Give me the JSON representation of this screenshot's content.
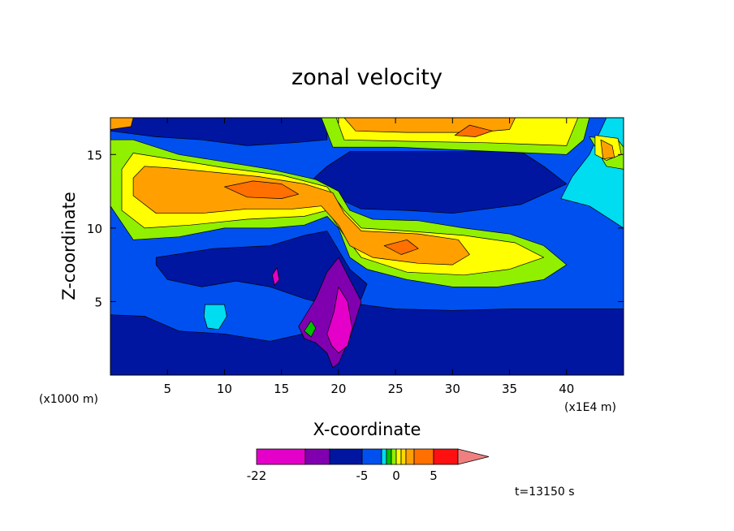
{
  "chart_data": {
    "type": "heatmap",
    "title": "zonal velocity",
    "xlabel": "X-coordinate",
    "ylabel": "Z-coordinate",
    "x_unit_left": "(x1000 m)",
    "x_unit_right": "(x1E4 m)",
    "xlim": [
      0,
      45
    ],
    "ylim": [
      0,
      17.5
    ],
    "x_ticks": [
      "5",
      "10",
      "15",
      "20",
      "25",
      "30",
      "35",
      "40"
    ],
    "y_ticks": [
      "5",
      "10",
      "15"
    ],
    "x_tick_values": [
      5,
      10,
      15,
      20,
      25,
      30,
      35,
      40
    ],
    "y_tick_values": [
      5,
      10,
      15
    ],
    "colorbar": {
      "levels": [
        -22,
        -17,
        -11,
        -5,
        -3,
        -2,
        -1,
        0,
        1,
        2,
        3,
        5,
        8,
        11
      ],
      "labels": [
        "-22",
        "-5",
        "0",
        "5"
      ],
      "label_values": [
        -22,
        -5,
        0,
        5
      ],
      "colors": [
        "#e400c8",
        "#8000b0",
        "#0016a0",
        "#0050f0",
        "#00dcf0",
        "#00c000",
        "#90f000",
        "#ffff00",
        "#ffd800",
        "#ffa000",
        "#ff7000",
        "#ff1010",
        "#f08080"
      ]
    },
    "annotation_time": "t=13150 s",
    "regions": [
      {
        "level": 2,
        "points": [
          [
            0,
            0
          ],
          [
            45,
            0
          ],
          [
            45,
            4.5
          ],
          [
            40,
            4.5
          ],
          [
            35,
            4.5
          ],
          [
            30,
            4.4
          ],
          [
            25,
            4.5
          ],
          [
            22,
            4.8
          ],
          [
            21.5,
            5.5
          ],
          [
            20,
            4
          ],
          [
            18,
            3
          ],
          [
            14,
            2.3
          ],
          [
            10,
            2.8
          ],
          [
            6,
            3
          ],
          [
            3,
            4
          ],
          [
            0,
            4.1
          ]
        ]
      },
      {
        "level": 2,
        "points": [
          [
            4,
            8
          ],
          [
            9,
            8.6
          ],
          [
            14,
            8.8
          ],
          [
            17,
            9.5
          ],
          [
            19,
            9.8
          ],
          [
            20,
            8.5
          ],
          [
            21,
            7.2
          ],
          [
            22.5,
            6.2
          ],
          [
            22,
            5.2
          ],
          [
            20,
            4.6
          ],
          [
            17,
            5.2
          ],
          [
            14,
            6
          ],
          [
            11,
            6.4
          ],
          [
            8,
            6
          ],
          [
            5,
            6.5
          ],
          [
            4,
            7.5
          ]
        ]
      },
      {
        "level": 2,
        "points": [
          [
            17,
            12.6
          ],
          [
            20,
            12
          ],
          [
            22,
            11.3
          ],
          [
            26,
            11.2
          ],
          [
            30,
            11
          ],
          [
            36,
            11.6
          ],
          [
            40,
            13
          ],
          [
            38,
            14.2
          ],
          [
            36,
            15.2
          ],
          [
            32,
            15.2
          ],
          [
            26,
            15.2
          ],
          [
            21,
            15.2
          ],
          [
            19,
            14.2
          ],
          [
            18,
            13.5
          ]
        ]
      },
      {
        "level": 2,
        "points": [
          [
            0,
            16.6
          ],
          [
            4,
            16.2
          ],
          [
            8,
            16
          ],
          [
            12,
            15.6
          ],
          [
            16,
            15.8
          ],
          [
            19,
            16
          ],
          [
            19,
            17.5
          ],
          [
            0,
            17.5
          ]
        ]
      },
      {
        "level": 1,
        "points": [
          [
            16.5,
            3.3
          ],
          [
            18,
            5.2
          ],
          [
            19,
            7
          ],
          [
            20,
            8
          ],
          [
            21,
            6.5
          ],
          [
            22,
            5
          ],
          [
            21,
            2.5
          ],
          [
            20,
            0.8
          ],
          [
            19.5,
            0.5
          ],
          [
            19,
            1.5
          ],
          [
            18,
            2.2
          ],
          [
            17,
            2.5
          ]
        ]
      },
      {
        "level": 0,
        "points": [
          [
            19,
            2.8
          ],
          [
            19.6,
            4.3
          ],
          [
            20,
            6
          ],
          [
            20.8,
            5
          ],
          [
            21.2,
            3.2
          ],
          [
            20.8,
            2
          ],
          [
            20,
            1.5
          ],
          [
            19.4,
            2
          ]
        ]
      },
      {
        "level": 0,
        "points": [
          [
            14.2,
            6.8
          ],
          [
            14.6,
            7.3
          ],
          [
            14.8,
            6.5
          ],
          [
            14.4,
            6.1
          ]
        ]
      },
      {
        "level": 4,
        "points": [
          [
            8.3,
            4.8
          ],
          [
            10,
            4.8
          ],
          [
            10.2,
            4
          ],
          [
            9.5,
            3.1
          ],
          [
            8.5,
            3.2
          ],
          [
            8.2,
            4
          ]
        ]
      },
      {
        "level": 4,
        "points": [
          [
            39.5,
            12
          ],
          [
            42,
            11.5
          ],
          [
            44,
            10.5
          ],
          [
            45,
            10
          ],
          [
            45,
            17.5
          ],
          [
            43.5,
            17.5
          ],
          [
            42,
            15
          ],
          [
            40.5,
            13.5
          ]
        ]
      },
      {
        "level": 5,
        "points": [
          [
            17,
            3
          ],
          [
            17.6,
            3.7
          ],
          [
            18,
            3.2
          ],
          [
            17.6,
            2.6
          ]
        ]
      },
      {
        "level": 6,
        "points": [
          [
            0,
            11.5
          ],
          [
            2,
            9.2
          ],
          [
            6,
            9.4
          ],
          [
            10,
            10
          ],
          [
            14,
            10
          ],
          [
            17,
            10.2
          ],
          [
            19,
            10.8
          ],
          [
            20,
            10
          ],
          [
            21,
            8
          ],
          [
            22.5,
            7.2
          ],
          [
            26,
            6.5
          ],
          [
            30,
            6
          ],
          [
            34,
            6
          ],
          [
            38,
            6.5
          ],
          [
            40,
            7.5
          ],
          [
            38,
            8.8
          ],
          [
            35,
            9.6
          ],
          [
            31,
            10
          ],
          [
            27,
            10.5
          ],
          [
            23,
            10.6
          ],
          [
            21,
            11.2
          ],
          [
            20,
            12.5
          ],
          [
            18,
            13.3
          ],
          [
            14,
            14
          ],
          [
            10,
            14.5
          ],
          [
            6,
            15
          ],
          [
            2,
            16
          ],
          [
            0,
            16
          ]
        ]
      },
      {
        "level": 6,
        "points": [
          [
            18.5,
            17.5
          ],
          [
            19.5,
            15.5
          ],
          [
            25,
            15.5
          ],
          [
            34,
            15.2
          ],
          [
            40,
            15
          ],
          [
            41.5,
            16
          ],
          [
            42,
            17.5
          ]
        ]
      },
      {
        "level": 6,
        "points": [
          [
            42,
            16.2
          ],
          [
            44.5,
            16
          ],
          [
            45,
            15.5
          ],
          [
            45,
            14
          ],
          [
            43.5,
            14.2
          ]
        ]
      },
      {
        "level": 7,
        "points": [
          [
            1,
            11.2
          ],
          [
            3,
            10
          ],
          [
            7,
            10.2
          ],
          [
            12,
            10.6
          ],
          [
            17,
            10.8
          ],
          [
            19,
            11.2
          ],
          [
            20.5,
            9.5
          ],
          [
            22,
            8
          ],
          [
            26,
            7
          ],
          [
            31,
            6.8
          ],
          [
            35,
            7.2
          ],
          [
            38,
            8
          ],
          [
            35.5,
            9
          ],
          [
            31,
            9.5
          ],
          [
            26,
            9.8
          ],
          [
            22,
            10
          ],
          [
            20.5,
            11.2
          ],
          [
            19,
            12.8
          ],
          [
            15,
            13.6
          ],
          [
            10,
            14.1
          ],
          [
            6,
            14.6
          ],
          [
            2,
            15.1
          ],
          [
            1,
            14
          ]
        ]
      },
      {
        "level": 7,
        "points": [
          [
            19.8,
            17.5
          ],
          [
            20.5,
            16
          ],
          [
            26,
            15.9
          ],
          [
            33,
            15.8
          ],
          [
            40,
            15.6
          ],
          [
            41,
            17.5
          ]
        ]
      },
      {
        "level": 7,
        "points": [
          [
            42.5,
            16.3
          ],
          [
            44.5,
            16.1
          ],
          [
            44.8,
            15
          ],
          [
            43.5,
            14.6
          ],
          [
            42.5,
            15
          ]
        ]
      },
      {
        "level": 9,
        "points": [
          [
            2,
            12.2
          ],
          [
            4,
            11
          ],
          [
            8,
            11
          ],
          [
            12,
            11.3
          ],
          [
            16,
            11.3
          ],
          [
            18.5,
            11.5
          ],
          [
            20,
            10.2
          ],
          [
            21,
            8.8
          ],
          [
            23,
            8
          ],
          [
            27,
            7.6
          ],
          [
            30,
            7.5
          ],
          [
            31.5,
            8.2
          ],
          [
            30.5,
            9.2
          ],
          [
            27,
            9.6
          ],
          [
            22,
            9.8
          ],
          [
            20.5,
            11
          ],
          [
            19.5,
            12.4
          ],
          [
            17,
            13
          ],
          [
            13,
            13.5
          ],
          [
            9,
            13.8
          ],
          [
            5,
            14.1
          ],
          [
            3,
            14.2
          ],
          [
            2,
            13.4
          ]
        ]
      },
      {
        "level": 9,
        "points": [
          [
            20.5,
            17.5
          ],
          [
            21.5,
            16.6
          ],
          [
            26,
            16.5
          ],
          [
            32,
            16.5
          ],
          [
            35,
            16.7
          ],
          [
            35.5,
            17.5
          ]
        ]
      },
      {
        "level": 9,
        "points": [
          [
            0,
            17.5
          ],
          [
            0,
            16.7
          ],
          [
            1.8,
            16.9
          ],
          [
            2,
            17.5
          ]
        ]
      },
      {
        "level": 9,
        "points": [
          [
            43,
            16
          ],
          [
            44,
            15.6
          ],
          [
            44.2,
            14.8
          ],
          [
            43.2,
            14.7
          ]
        ]
      },
      {
        "level": 10,
        "points": [
          [
            10,
            12.8
          ],
          [
            12,
            12.1
          ],
          [
            15,
            12
          ],
          [
            16.5,
            12.3
          ],
          [
            15,
            13
          ],
          [
            12.5,
            13.2
          ]
        ]
      },
      {
        "level": 10,
        "points": [
          [
            24,
            8.8
          ],
          [
            25.5,
            8.2
          ],
          [
            27,
            8.6
          ],
          [
            26,
            9.2
          ]
        ]
      },
      {
        "level": 10,
        "points": [
          [
            30.2,
            16.3
          ],
          [
            32,
            16.2
          ],
          [
            33.5,
            16.6
          ],
          [
            31.5,
            17
          ]
        ]
      }
    ]
  }
}
